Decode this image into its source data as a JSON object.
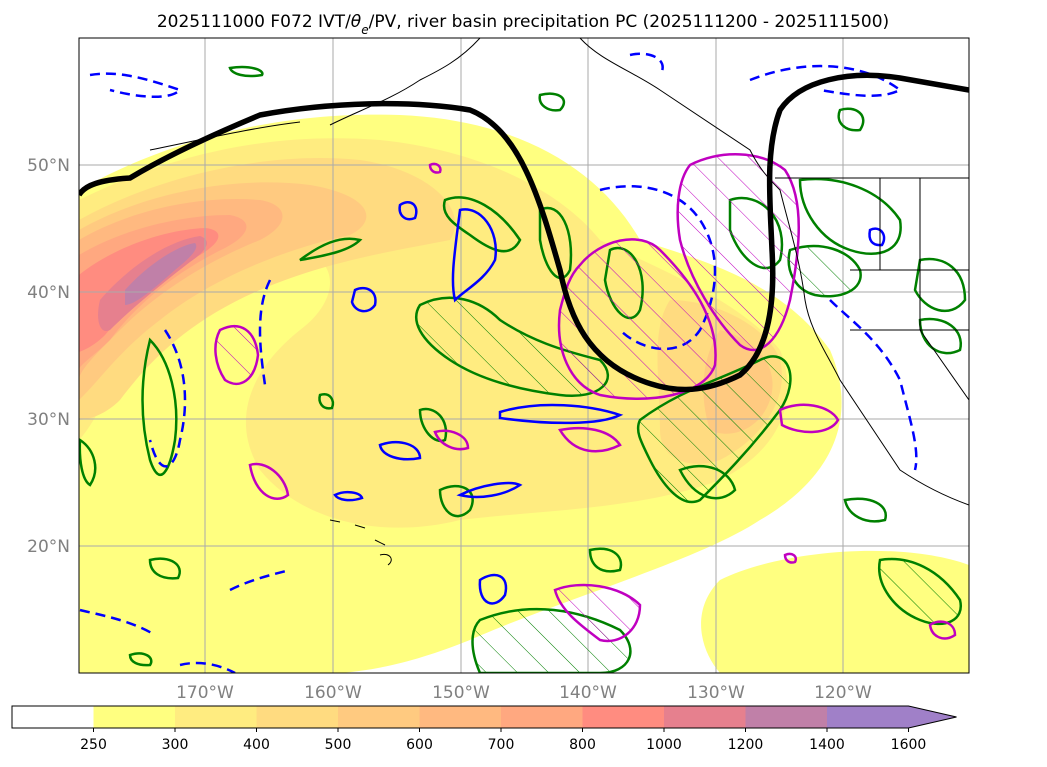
{
  "chart_data": {
    "type": "heatmap",
    "title": "2025111000 F072 IVT/θe/PV, river basin precipitation PC (2025111200 - 2025111500)",
    "title_prefix": "2025111000 F072 IVT/",
    "title_theta": "θ",
    "title_sub": "e",
    "title_suffix": "/PV, river basin precipitation PC (2025111200 - 2025111500)",
    "projection": "map",
    "lon_range": [
      -180,
      -110
    ],
    "lat_range": [
      10,
      60
    ],
    "lat_ticks": [
      {
        "value": 20,
        "label": "20°N"
      },
      {
        "value": 30,
        "label": "30°N"
      },
      {
        "value": 40,
        "label": "40°N"
      },
      {
        "value": 50,
        "label": "50°N"
      }
    ],
    "lon_ticks": [
      {
        "value": -170,
        "label": "170°W"
      },
      {
        "value": -160,
        "label": "160°W"
      },
      {
        "value": -150,
        "label": "150°W"
      },
      {
        "value": -140,
        "label": "140°W"
      },
      {
        "value": -130,
        "label": "130°W"
      },
      {
        "value": -120,
        "label": "120°W"
      }
    ],
    "grid": true,
    "colorbar": {
      "variable": "IVT",
      "levels": [
        250,
        300,
        400,
        500,
        600,
        700,
        800,
        1000,
        1200,
        1400,
        1600
      ],
      "labels": [
        "250",
        "300",
        "400",
        "500",
        "600",
        "700",
        "800",
        "1000",
        "1200",
        "1400",
        "1600"
      ],
      "colors": [
        "#ffffff",
        "#ffff80",
        "#ffec80",
        "#ffdb80",
        "#ffca80",
        "#ffb980",
        "#ffa880",
        "#ff8c80",
        "#e6808e",
        "#c080a8",
        "#a080c8",
        "#a080c8"
      ],
      "extend": "max"
    },
    "legend_colors": {
      "theta_e": "#008000",
      "pv": "#0000ff",
      "precip_pc": "#c000c0",
      "jet_line": "#000000",
      "coastline": "#000000"
    }
  }
}
